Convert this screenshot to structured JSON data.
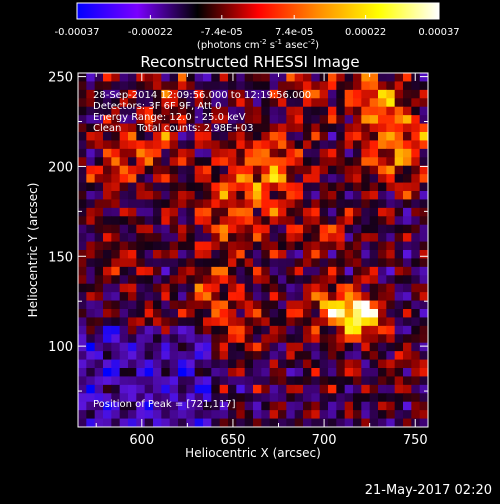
{
  "chart_data": {
    "type": "heatmap",
    "title": "Reconstructed RHESSI Image",
    "xlabel": "Heliocentric X (arcsec)",
    "ylabel": "Heliocentric Y (arcsec)",
    "xlim": [
      565,
      757
    ],
    "ylim": [
      55,
      252
    ],
    "x_ticks": [
      600,
      650,
      700,
      750
    ],
    "y_ticks": [
      100,
      150,
      200,
      250
    ],
    "colorbar": {
      "range": [
        -0.00037,
        0.00037
      ],
      "ticks": [
        "-0.00037",
        "-0.00022",
        "-7.4e-05",
        "7.4e-05",
        "0.00022",
        "0.00037"
      ],
      "tick_values": [
        -0.00037,
        -0.00022,
        -7.4e-05,
        7.4e-05,
        0.00022,
        0.00037
      ],
      "unit_main": "(photons cm",
      "unit_exp1": "-2",
      "unit_mid": " s",
      "unit_exp2": "-1",
      "unit_mid2": " asec",
      "unit_exp3": "-2",
      "unit_end": ")"
    },
    "colormap": [
      "#0000ff",
      "#7a00ff",
      "#000000",
      "#ff0000",
      "#ff8c00",
      "#ffff00",
      "#ffffff"
    ],
    "annotations": {
      "time_range": "28-Sep-2014 12:09:56.000 to 12:19:56.000",
      "detectors": "Detectors: 3F 6F 9F, Att 0",
      "energy": "Energy Range: 12.0 - 25.0 keV",
      "clean": "Clean     Total counts: 2.98E+03",
      "peak": "Position of Peak = [721,117]"
    },
    "peak": [
      721,
      117
    ],
    "grid": false,
    "footer_timestamp": "21-May-2017 02:20"
  }
}
